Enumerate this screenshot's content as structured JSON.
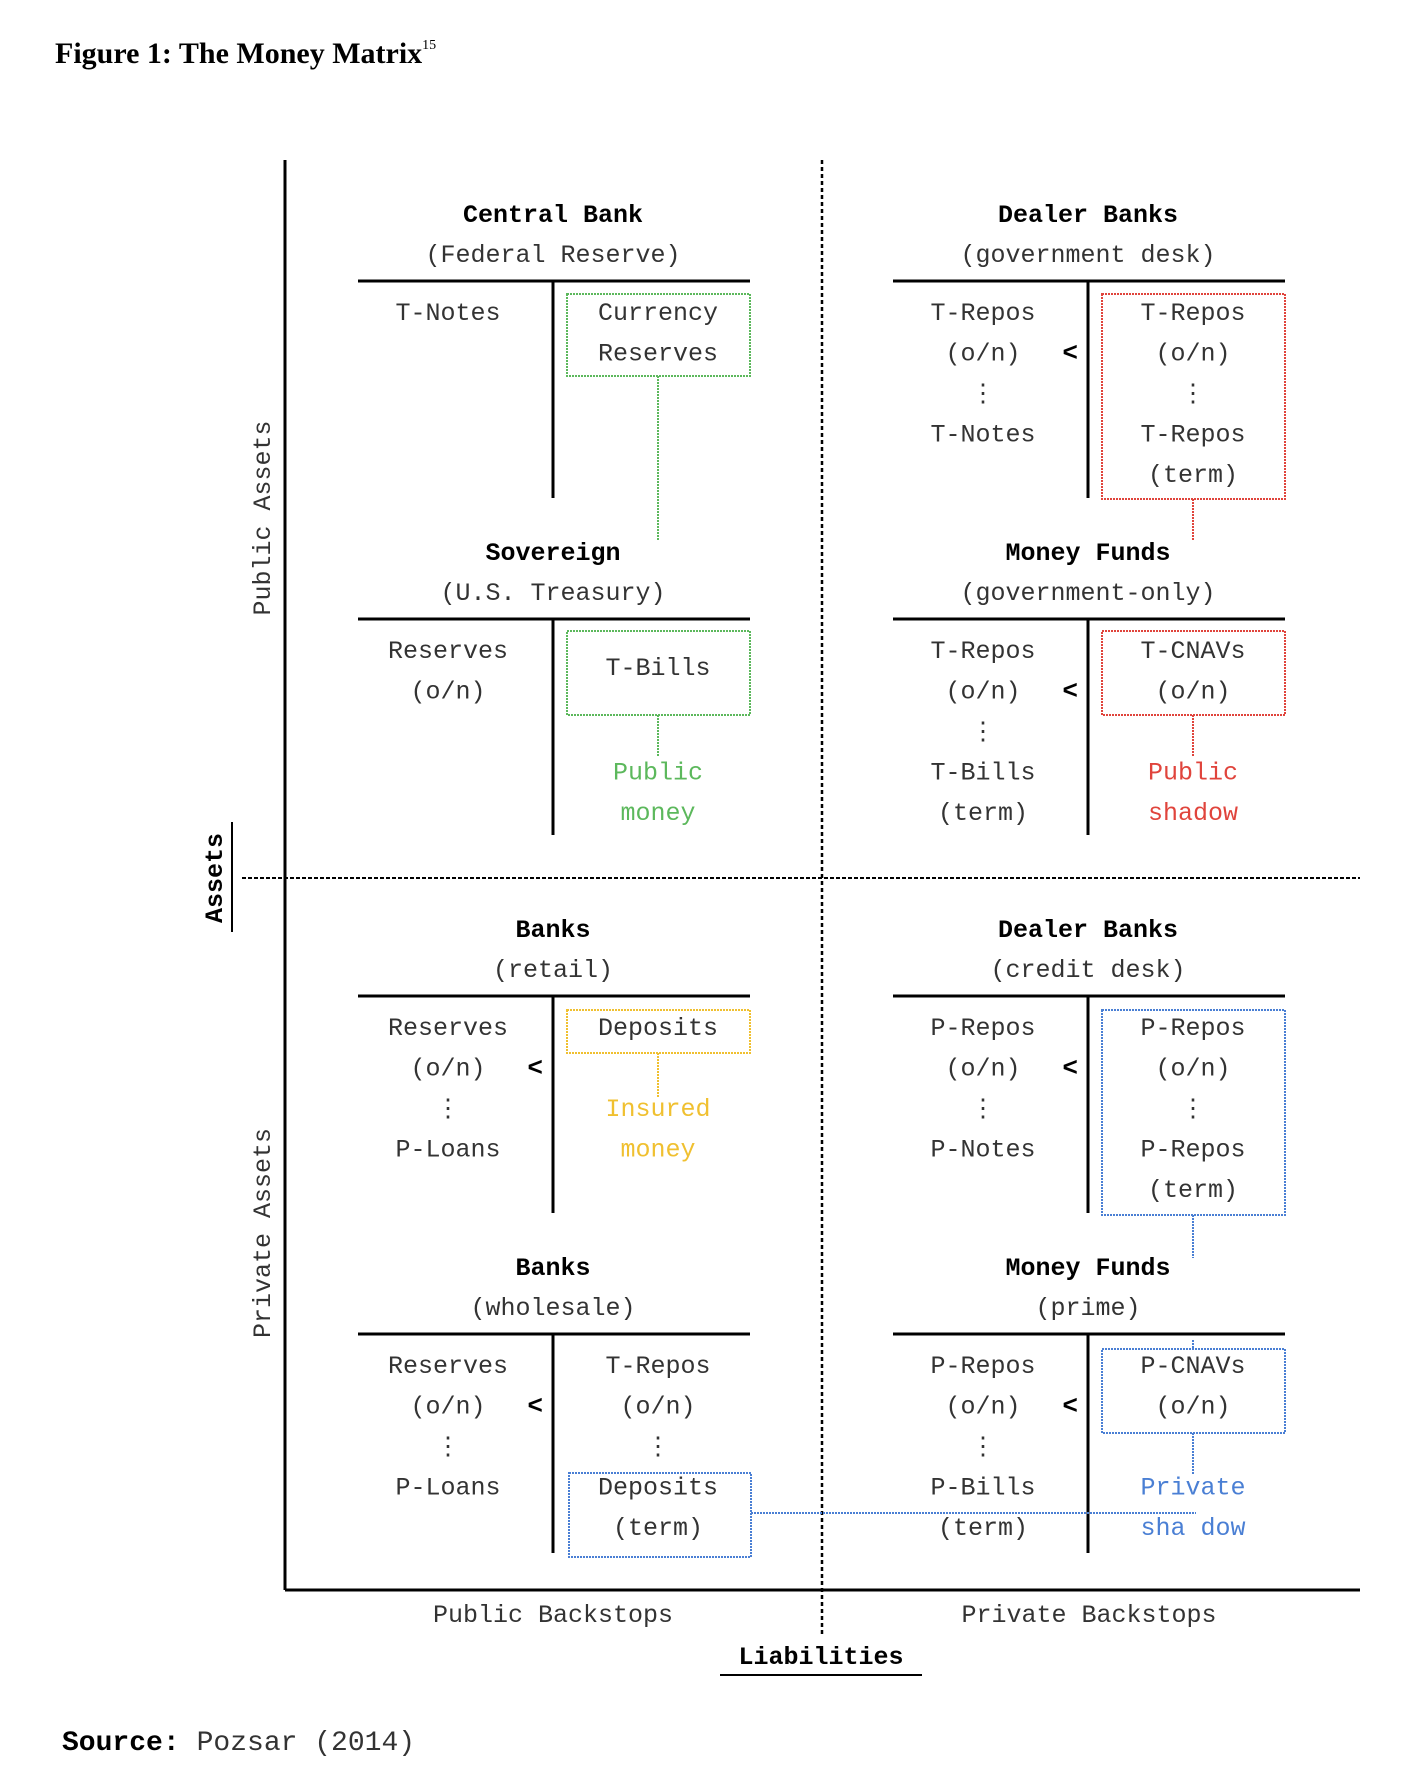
{
  "figure": {
    "title": "Figure 1: The Money Matrix",
    "title_sup": "15"
  },
  "axes": {
    "vertical_main": "Assets",
    "vertical_top": "Public Assets",
    "vertical_bottom": "Private Assets",
    "horizontal_main": "Liabilities",
    "horizontal_left": "Public Backstops",
    "horizontal_right": "Private Backstops"
  },
  "panels": {
    "central_bank": {
      "title": "Central Bank",
      "subtitle": "(Federal Reserve)",
      "assets": [
        "T-Notes"
      ],
      "liabilities": [
        "Currency",
        "Reserves"
      ]
    },
    "sovereign": {
      "title": "Sovereign",
      "subtitle": "(U.S. Treasury)",
      "assets": [
        "Reserves",
        "(o/n)"
      ],
      "liabilities": [
        "T-Bills"
      ],
      "note": [
        "Public",
        "money"
      ]
    },
    "dealer_gov": {
      "title": "Dealer Banks",
      "subtitle": "(government desk)",
      "assets": [
        "T-Repos",
        "(o/n)",
        "⋮",
        "T-Notes"
      ],
      "liabilities": [
        "T-Repos",
        "(o/n)",
        "⋮",
        "T-Repos",
        "(term)"
      ]
    },
    "mmf_gov": {
      "title": "Money Funds",
      "subtitle": "(government-only)",
      "assets": [
        "T-Repos",
        "(o/n)",
        "⋮",
        "T-Bills",
        "(term)"
      ],
      "liabilities": [
        "T-CNAVs",
        "(o/n)"
      ],
      "note": [
        "Public",
        "shadow"
      ]
    },
    "banks_retail": {
      "title": "Banks",
      "subtitle": "(retail)",
      "assets": [
        "Reserves",
        "(o/n)",
        "⋮",
        "P-Loans"
      ],
      "liabilities": [
        "Deposits"
      ],
      "note": [
        "Insured",
        "money"
      ]
    },
    "dealer_credit": {
      "title": "Dealer Banks",
      "subtitle": "(credit desk)",
      "assets": [
        "P-Repos",
        "(o/n)",
        "⋮",
        "P-Notes"
      ],
      "liabilities": [
        "P-Repos",
        "(o/n)",
        "⋮",
        "P-Repos",
        "(term)"
      ]
    },
    "banks_wholesale": {
      "title": "Banks",
      "subtitle": "(wholesale)",
      "assets": [
        "Reserves",
        "(o/n)",
        "⋮",
        "P-Loans"
      ],
      "liabilities": [
        "T-Repos",
        "(o/n)",
        "⋮",
        "Deposits",
        "(term)"
      ]
    },
    "mmf_prime": {
      "title": "Money Funds",
      "subtitle": "(prime)",
      "assets": [
        "P-Repos",
        "(o/n)",
        "⋮",
        "P-Bills",
        "(term)"
      ],
      "liabilities": [
        "P-CNAVs",
        "(o/n)"
      ],
      "note": [
        "Private",
        "sha dow"
      ]
    }
  },
  "comparator": "<",
  "source": {
    "label": "Source:",
    "text": "Pozsar (2014)"
  },
  "colors": {
    "green": "#5cb85c",
    "red": "#e0443c",
    "yellow": "#f0c030",
    "blue": "#4a7fd4",
    "ink": "#000000"
  }
}
